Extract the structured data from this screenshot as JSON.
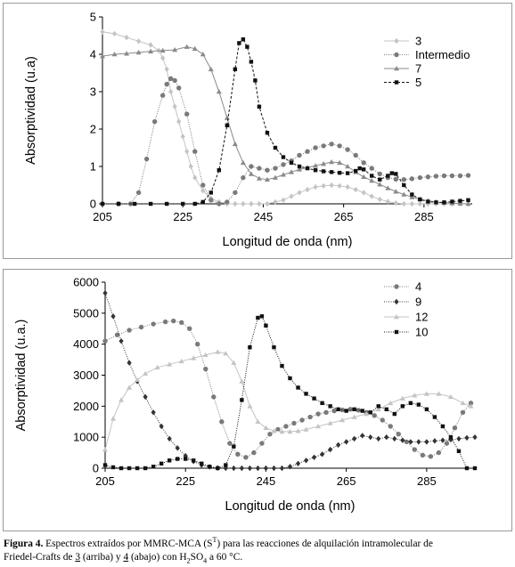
{
  "chart_data": [
    {
      "type": "line",
      "ylabel": "Absorptividad (u.a)",
      "xlabel": "Longitud de onda (nm)",
      "xlim": [
        205,
        297
      ],
      "ylim": [
        0,
        5
      ],
      "x_ticks": [
        "205",
        "225",
        "245",
        "265",
        "285"
      ],
      "y_ticks": [
        "0",
        "1",
        "2",
        "3",
        "4",
        "5"
      ],
      "grid": false,
      "legend": "top-right",
      "series": [
        {
          "name": "3",
          "color": "#c4c4c4",
          "marker": "diamond",
          "dash": "solid",
          "x": [
            205,
            208,
            211,
            214,
            217,
            219,
            220,
            221,
            222,
            223,
            224,
            225,
            226,
            227,
            228,
            230,
            232,
            234,
            236,
            238,
            240,
            242,
            244,
            246,
            248,
            250,
            252,
            254,
            256,
            258,
            260,
            262,
            264,
            266,
            268,
            270,
            272,
            274,
            276,
            278,
            280,
            282,
            284,
            286,
            288,
            290,
            292,
            294,
            296
          ],
          "y": [
            4.6,
            4.55,
            4.45,
            4.35,
            4.25,
            4.1,
            3.9,
            3.6,
            3.0,
            2.6,
            2.2,
            1.8,
            1.4,
            1.0,
            0.7,
            0.35,
            0.15,
            0.05,
            0.0,
            0.0,
            0.0,
            0.0,
            0.0,
            0.0,
            0.05,
            0.1,
            0.2,
            0.3,
            0.38,
            0.45,
            0.48,
            0.5,
            0.48,
            0.45,
            0.38,
            0.3,
            0.2,
            0.12,
            0.06,
            0.02,
            0.0,
            0.0,
            0.0,
            0.0,
            0.0,
            0.0,
            0.0,
            0.0,
            0.0
          ]
        },
        {
          "name": "Intermedio",
          "color": "#7a7a7a",
          "marker": "circle",
          "dash": "dotted",
          "x": [
            205,
            209,
            212,
            214,
            216,
            218,
            220,
            221,
            222,
            223,
            224,
            226,
            228,
            230,
            232,
            234,
            236,
            238,
            240,
            242,
            244,
            246,
            248,
            250,
            252,
            254,
            256,
            258,
            260,
            262,
            264,
            266,
            268,
            270,
            272,
            274,
            276,
            278,
            280,
            282,
            284,
            286,
            288,
            290,
            292,
            294,
            296
          ],
          "y": [
            0.0,
            0.0,
            0.0,
            0.3,
            1.2,
            2.2,
            2.9,
            3.2,
            3.35,
            3.3,
            3.1,
            2.4,
            1.4,
            0.5,
            0.1,
            0.0,
            0.05,
            0.3,
            0.7,
            1.0,
            0.95,
            0.9,
            0.95,
            1.05,
            1.15,
            1.3,
            1.4,
            1.5,
            1.55,
            1.6,
            1.55,
            1.45,
            1.3,
            1.1,
            0.95,
            0.8,
            0.7,
            0.66,
            0.65,
            0.67,
            0.7,
            0.72,
            0.74,
            0.75,
            0.75,
            0.75,
            0.76
          ]
        },
        {
          "name": "7",
          "color": "#8a8a8a",
          "marker": "triangle",
          "dash": "solid",
          "x": [
            205,
            208,
            211,
            214,
            217,
            220,
            223,
            226,
            228,
            230,
            232,
            234,
            236,
            238,
            240,
            242,
            244,
            246,
            248,
            250,
            252,
            254,
            256,
            258,
            260,
            262,
            264,
            266,
            268,
            270,
            272,
            274,
            276,
            278,
            280,
            282,
            284,
            286,
            288,
            290,
            292,
            294,
            296
          ],
          "y": [
            3.95,
            4.0,
            4.02,
            4.05,
            4.08,
            4.1,
            4.12,
            4.2,
            4.15,
            4.0,
            3.6,
            3.0,
            2.3,
            1.6,
            1.1,
            0.8,
            0.68,
            0.65,
            0.7,
            0.78,
            0.85,
            0.92,
            0.97,
            1.02,
            1.07,
            1.12,
            1.1,
            1.0,
            0.85,
            0.72,
            0.62,
            0.52,
            0.42,
            0.33,
            0.25,
            0.18,
            0.12,
            0.08,
            0.05,
            0.03,
            0.02,
            0.01,
            0.0
          ]
        },
        {
          "name": "5",
          "color": "#111111",
          "marker": "square",
          "dash": "dashed",
          "x": [
            205,
            209,
            213,
            217,
            221,
            225,
            228,
            230,
            232,
            234,
            236,
            238,
            239,
            240,
            241,
            242,
            243,
            244,
            246,
            248,
            250,
            252,
            254,
            256,
            258,
            260,
            262,
            264,
            266,
            268,
            269,
            270,
            272,
            274,
            276,
            277,
            278,
            280,
            282,
            284,
            286,
            288,
            290,
            292,
            294,
            296
          ],
          "y": [
            0.0,
            0.0,
            0.0,
            0.0,
            0.0,
            0.0,
            0.0,
            0.05,
            0.3,
            0.9,
            2.1,
            3.6,
            4.3,
            4.4,
            4.2,
            3.8,
            3.3,
            2.6,
            1.9,
            1.5,
            1.25,
            1.1,
            1.0,
            0.95,
            0.9,
            0.87,
            0.85,
            0.83,
            0.82,
            0.88,
            0.95,
            0.92,
            0.75,
            0.65,
            0.75,
            0.82,
            0.8,
            0.5,
            0.25,
            0.12,
            0.06,
            0.04,
            0.04,
            0.06,
            0.08,
            0.1
          ]
        }
      ]
    },
    {
      "type": "line",
      "ylabel": "Absorptividad (u.a.)",
      "xlabel": "Longitud de onda (nm)",
      "xlim": [
        205,
        297
      ],
      "ylim": [
        0,
        6000
      ],
      "x_ticks": [
        "205",
        "225",
        "245",
        "265",
        "285"
      ],
      "y_ticks": [
        "0",
        "1000",
        "2000",
        "3000",
        "4000",
        "5000",
        "6000"
      ],
      "grid": false,
      "legend": "top-right",
      "series": [
        {
          "name": "4",
          "color": "#7a7a7a",
          "marker": "circle",
          "dash": "dotted",
          "x": [
            205,
            208,
            211,
            214,
            217,
            220,
            222,
            224,
            226,
            228,
            230,
            232,
            234,
            236,
            238,
            240,
            242,
            244,
            246,
            248,
            250,
            252,
            254,
            256,
            258,
            260,
            262,
            264,
            266,
            268,
            270,
            272,
            274,
            276,
            278,
            280,
            282,
            284,
            286,
            288,
            290,
            292,
            294,
            296
          ],
          "y": [
            4100,
            4300,
            4450,
            4550,
            4650,
            4720,
            4750,
            4700,
            4500,
            4000,
            3200,
            2300,
            1500,
            800,
            450,
            350,
            500,
            800,
            1100,
            1250,
            1350,
            1450,
            1550,
            1650,
            1750,
            1800,
            1850,
            1880,
            1900,
            1870,
            1800,
            1700,
            1550,
            1350,
            1100,
            850,
            600,
            420,
            380,
            500,
            800,
            1300,
            1800,
            2100
          ]
        },
        {
          "name": "9",
          "color": "#333333",
          "marker": "diamond",
          "dash": "dotted",
          "x": [
            205,
            207,
            209,
            211,
            213,
            215,
            217,
            219,
            221,
            223,
            225,
            227,
            229,
            231,
            233,
            235,
            237,
            239,
            241,
            243,
            245,
            247,
            249,
            251,
            253,
            255,
            257,
            259,
            261,
            263,
            265,
            267,
            269,
            271,
            273,
            275,
            277,
            279,
            281,
            283,
            285,
            287,
            289,
            291,
            293,
            295,
            297
          ],
          "y": [
            5650,
            4900,
            4100,
            3400,
            2800,
            2300,
            1800,
            1350,
            950,
            650,
            400,
            220,
            100,
            40,
            10,
            0,
            0,
            0,
            0,
            0,
            0,
            0,
            0,
            50,
            150,
            250,
            350,
            450,
            600,
            750,
            850,
            950,
            1050,
            1000,
            950,
            1000,
            950,
            900,
            850,
            850,
            850,
            880,
            900,
            920,
            950,
            980,
            1000
          ]
        },
        {
          "name": "12",
          "color": "#c4c4c4",
          "marker": "triangle",
          "dash": "solid",
          "x": [
            205,
            207,
            209,
            211,
            213,
            215,
            218,
            221,
            224,
            227,
            230,
            233,
            235,
            237,
            239,
            241,
            243,
            245,
            247,
            249,
            251,
            253,
            255,
            258,
            261,
            264,
            267,
            270,
            273,
            276,
            279,
            282,
            285,
            288,
            291,
            294,
            296
          ],
          "y": [
            600,
            1600,
            2200,
            2600,
            2850,
            3050,
            3250,
            3350,
            3450,
            3550,
            3650,
            3750,
            3700,
            3400,
            2800,
            2000,
            1500,
            1300,
            1200,
            1180,
            1180,
            1200,
            1250,
            1350,
            1450,
            1550,
            1650,
            1750,
            1900,
            2100,
            2250,
            2350,
            2400,
            2400,
            2300,
            2100,
            2000
          ]
        },
        {
          "name": "10",
          "color": "#111111",
          "marker": "square",
          "dash": "dotted",
          "x": [
            205,
            207,
            209,
            211,
            213,
            215,
            217,
            219,
            221,
            223,
            225,
            227,
            229,
            231,
            233,
            235,
            237,
            239,
            241,
            243,
            244,
            245,
            247,
            249,
            251,
            253,
            255,
            257,
            259,
            261,
            263,
            265,
            267,
            269,
            271,
            273,
            275,
            277,
            279,
            281,
            283,
            285,
            287,
            289,
            291,
            293,
            295,
            297
          ],
          "y": [
            100,
            30,
            0,
            0,
            0,
            0,
            50,
            150,
            250,
            300,
            300,
            250,
            150,
            50,
            0,
            100,
            700,
            2200,
            3900,
            4850,
            4900,
            4600,
            3900,
            3300,
            2900,
            2600,
            2400,
            2250,
            2100,
            2000,
            1900,
            1850,
            1900,
            1850,
            1800,
            2000,
            1900,
            1750,
            2000,
            2100,
            2050,
            1900,
            1650,
            1350,
            1000,
            550,
            0,
            0
          ]
        }
      ]
    }
  ],
  "caption": {
    "label": "Figura 4.",
    "text_1": " Espectros extraídos por MMRC-MCA (S",
    "superscript": "T",
    "text_2": ") para las reacciones de alquilación intramolecular de",
    "text_3": "Friedel-Crafts de ",
    "ref_top": "3",
    "text_4": " (arriba) y ",
    "ref_bottom": "4",
    "text_5": " (abajo) con H",
    "sub_2": "2",
    "text_6": "SO",
    "sub_4": "4",
    "text_7": " a 60 °C."
  }
}
